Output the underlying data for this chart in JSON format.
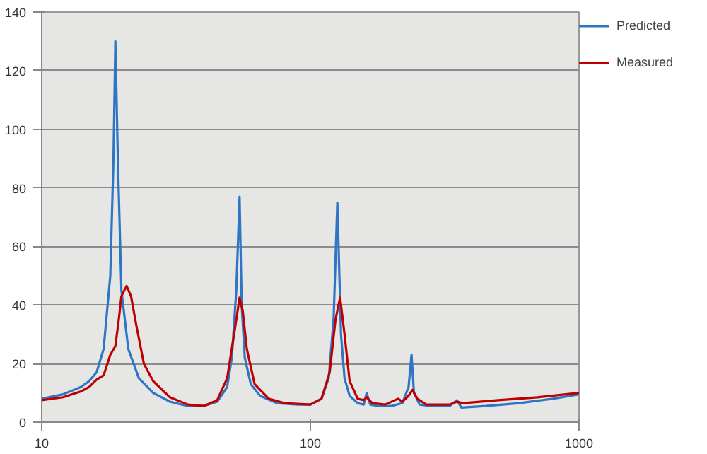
{
  "chart_data": {
    "type": "line",
    "log": "x",
    "xlim": [
      10,
      1000
    ],
    "xticks": [
      10,
      100,
      1000
    ],
    "ylim": [
      0,
      140
    ],
    "yticks": [
      0,
      20,
      40,
      60,
      80,
      100,
      120,
      140
    ],
    "grid": "y",
    "legend": "right",
    "line_style": "solid",
    "marker": "none",
    "series": [
      {
        "name": "Predicted",
        "color": "#2e75c6",
        "x": [
          10,
          12,
          14,
          15,
          16,
          17,
          18,
          18.5,
          18.8,
          19.2,
          19.8,
          21,
          23,
          26,
          30,
          35,
          40,
          45,
          49,
          51,
          53,
          54.5,
          55.5,
          57,
          60,
          65,
          75,
          90,
          100,
          110,
          117,
          122,
          126,
          130,
          134,
          140,
          150,
          158,
          162,
          167,
          180,
          200,
          220,
          232,
          238,
          243,
          255,
          280,
          330,
          351,
          365,
          450,
          600,
          800,
          1000
        ],
        "values": [
          8,
          9.5,
          12,
          14,
          17,
          25,
          50,
          90,
          130,
          90,
          45,
          25,
          15,
          10,
          7,
          5.5,
          5.5,
          7,
          12,
          22,
          45,
          77,
          40,
          22,
          13,
          9,
          6.5,
          6,
          6,
          8,
          15,
          35,
          75,
          30,
          15,
          9,
          6.5,
          6,
          10,
          6,
          5.5,
          5.5,
          6.5,
          12,
          23,
          10,
          6,
          5.5,
          5.5,
          7.5,
          5,
          5.5,
          6.5,
          8,
          9.5
        ]
      },
      {
        "name": "Measured",
        "color": "#c00000",
        "x": [
          10,
          12,
          14,
          15,
          16,
          17,
          18,
          18.8,
          19.3,
          19.8,
          20.7,
          21.5,
          22.5,
          24,
          26,
          30,
          35,
          40,
          45,
          49,
          52,
          54.5,
          56,
          58,
          62,
          70,
          80,
          100,
          110,
          118,
          124,
          129,
          134,
          140,
          150,
          158,
          162,
          170,
          190,
          212,
          220,
          232,
          240,
          250,
          270,
          330,
          351,
          370,
          500,
          700,
          1000
        ],
        "values": [
          7.5,
          8.5,
          10.5,
          12,
          14.5,
          16,
          23,
          26,
          34,
          43,
          46.5,
          43,
          33,
          20,
          14,
          8.5,
          6,
          5.5,
          7.5,
          15,
          30,
          42.5,
          38,
          25,
          13,
          8,
          6.5,
          6,
          8,
          17,
          35,
          42.5,
          30,
          14,
          8,
          7.5,
          8.5,
          6.5,
          6,
          8,
          7,
          9,
          11,
          8,
          6,
          6,
          7,
          6.5,
          7.5,
          8.5,
          10
        ]
      }
    ]
  }
}
